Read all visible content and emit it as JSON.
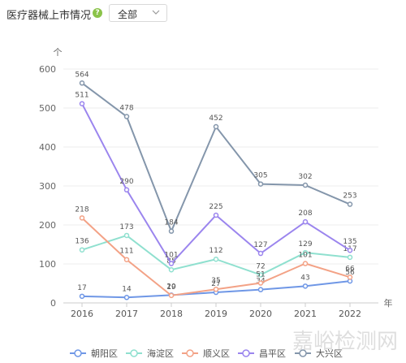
{
  "header": {
    "title": "医疗器械上市情况",
    "help_icon": "question-icon",
    "select_value": "全部"
  },
  "watermark": "嘉峪检测网",
  "colors": {
    "朝阳区": "#6f97e6",
    "海淀区": "#8fe0cf",
    "顺义区": "#f3a286",
    "昌平区": "#9b85ee",
    "大兴区": "#8496ab"
  },
  "chart_data": {
    "type": "line",
    "ylabel": "个",
    "xlabel": "年",
    "ylim": [
      0,
      600
    ],
    "yticks": [
      0,
      100,
      200,
      300,
      400,
      500,
      600
    ],
    "categories": [
      "2016",
      "2017",
      "2018",
      "2019",
      "2020",
      "2021",
      "2022"
    ],
    "series": [
      {
        "name": "朝阳区",
        "values": [
          17,
          14,
          20,
          27,
          34,
          43,
          56
        ]
      },
      {
        "name": "海淀区",
        "values": [
          136,
          173,
          85,
          112,
          72,
          129,
          117
        ]
      },
      {
        "name": "顺义区",
        "values": [
          218,
          111,
          19,
          35,
          51,
          101,
          66
        ]
      },
      {
        "name": "昌平区",
        "values": [
          511,
          290,
          101,
          225,
          127,
          208,
          135
        ]
      },
      {
        "name": "大兴区",
        "values": [
          564,
          478,
          184,
          452,
          305,
          302,
          253
        ]
      }
    ],
    "grid": true,
    "legend": "bottom"
  }
}
